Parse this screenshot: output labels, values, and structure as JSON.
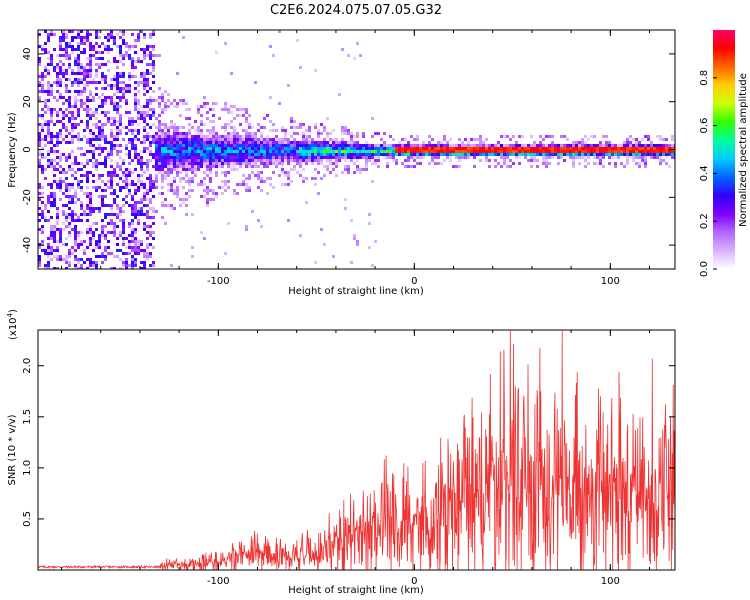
{
  "title": "C2E6.2024.075.07.05.G32",
  "colors": {
    "snr_line": "#ee3333",
    "axes": "#000000",
    "background": "#ffffff"
  },
  "chart_data": [
    {
      "type": "heatmap",
      "xlabel": "Height of straight line (km)",
      "ylabel": "Frequency (Hz)",
      "xlim": [
        -192,
        133
      ],
      "ylim": [
        -50,
        50
      ],
      "xticks": [
        -100,
        0,
        100
      ],
      "yticks": [
        -40,
        -20,
        0,
        20,
        40
      ],
      "colorbar": {
        "label": "Normalized spectral amplitude",
        "range": [
          0.0,
          1.0
        ],
        "ticks": [
          0.0,
          0.2,
          0.4,
          0.6,
          0.8
        ],
        "colormap": [
          "#ffffff",
          "#d9b3ff",
          "#b266ff",
          "#7f00ff",
          "#3300ff",
          "#0066ff",
          "#00ccff",
          "#00ff99",
          "#33ff00",
          "#ccff00",
          "#ffcc00",
          "#ff6600",
          "#ff0000",
          "#ff0066"
        ]
      },
      "description_of_structure": {
        "noise_region_x": [
          -192,
          -133
        ],
        "signal_center_freq": 0,
        "signal_band_halfwidth_hz": [
          [
            -133,
            12
          ],
          [
            -60,
            6
          ],
          [
            -10,
            3
          ],
          [
            133,
            3
          ]
        ]
      }
    },
    {
      "type": "line",
      "xlabel": "Height of straight line (km)",
      "ylabel": "SNR (10 * v/v)",
      "multiplier_label": "(x10",
      "multiplier_exp": "4",
      "multiplier_close": ")",
      "xlim": [
        -192,
        133
      ],
      "ylim": [
        0,
        2.35
      ],
      "xticks": [
        -100,
        0,
        100
      ],
      "yticks": [
        0.5,
        1.0,
        1.5,
        2.0
      ],
      "series": [
        {
          "envelope_x": [
            -192,
            -150,
            -125,
            -110,
            -95,
            -80,
            -70,
            -60,
            -50,
            -40,
            -30,
            -20,
            -10,
            0,
            10,
            20,
            30,
            40,
            50,
            55,
            60,
            70,
            80,
            90,
            100,
            110,
            120,
            133
          ],
          "envelope_y": [
            0.02,
            0.03,
            0.07,
            0.1,
            0.18,
            0.28,
            0.22,
            0.22,
            0.3,
            0.4,
            0.55,
            0.75,
            0.7,
            0.75,
            0.9,
            1.2,
            1.3,
            1.4,
            1.55,
            1.6,
            1.45,
            1.35,
            1.3,
            1.25,
            1.2,
            1.2,
            1.15,
            1.2
          ]
        }
      ]
    }
  ]
}
